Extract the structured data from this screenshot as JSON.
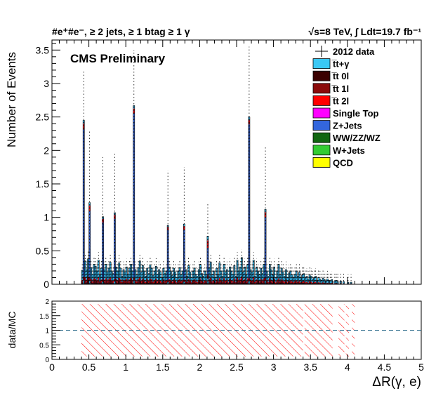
{
  "header": {
    "left_title": "#e⁺#e⁻, ≥ 2 jets, ≥ 1 btag ≥ 1 γ",
    "right_title": "√s=8 TeV, ∫ Ldt=19.7 fb⁻¹",
    "cms_label": "CMS Preliminary"
  },
  "chart_data": [
    {
      "type": "bar",
      "stacked": true,
      "xlabel": "ΔR(γ, e)",
      "ylabel": "Number of Events",
      "xlim": [
        0,
        5
      ],
      "ylim": [
        0,
        3.65
      ],
      "yticks": [
        0,
        0.5,
        1,
        1.5,
        2,
        2.5,
        3,
        3.5
      ],
      "ytick_labels": [
        "0",
        "0.5",
        "1",
        "1.5",
        "2",
        "2.5",
        "3",
        "3.5"
      ],
      "legend_position": "top-right",
      "legend": [
        {
          "name": "2012 data",
          "marker": "data-point"
        },
        {
          "name": "t̅t+γ",
          "color": "#3ac8f5"
        },
        {
          "name": "t̅t 0l",
          "color": "#3a0000"
        },
        {
          "name": "t̅t 1l",
          "color": "#8b0a0a"
        },
        {
          "name": "t̅t 2l",
          "color": "#ff0000"
        },
        {
          "name": "Single Top",
          "color": "#ff00ff"
        },
        {
          "name": "Z+Jets",
          "color": "#3366dd"
        },
        {
          "name": "WW/ZZ/WZ",
          "color": "#116611"
        },
        {
          "name": "W+Jets",
          "color": "#33cc33"
        },
        {
          "name": "QCD",
          "color": "#ffff00"
        }
      ],
      "bin_width": 0.02,
      "bins": [
        {
          "x": 0.43,
          "mc": 2.45,
          "zjets": 2.2,
          "err": 3.2
        },
        {
          "x": 0.51,
          "mc": 1.22,
          "zjets": 1.0,
          "err": 2.3
        },
        {
          "x": 0.69,
          "mc": 1.01,
          "zjets": 0.85,
          "err": 1.9
        },
        {
          "x": 0.85,
          "mc": 1.07,
          "zjets": 0.9,
          "err": 1.95
        },
        {
          "x": 1.11,
          "mc": 2.67,
          "zjets": 2.45,
          "err": 3.5
        },
        {
          "x": 1.57,
          "mc": 0.88,
          "zjets": 0.75,
          "err": 1.7
        },
        {
          "x": 1.79,
          "mc": 0.9,
          "zjets": 0.75,
          "err": 1.75
        },
        {
          "x": 2.11,
          "mc": 0.72,
          "zjets": 0.4,
          "err": 1.2
        },
        {
          "x": 2.67,
          "mc": 2.5,
          "zjets": 2.3,
          "err": 3.55
        },
        {
          "x": 2.89,
          "mc": 1.12,
          "zjets": 0.9,
          "err": 2.05
        }
      ],
      "small_bins": [
        [
          0.41,
          0.21
        ],
        [
          0.45,
          0.35
        ],
        [
          0.47,
          0.22
        ],
        [
          0.49,
          0.38
        ],
        [
          0.53,
          0.25
        ],
        [
          0.55,
          0.15
        ],
        [
          0.57,
          0.3
        ],
        [
          0.59,
          0.27
        ],
        [
          0.61,
          0.2
        ],
        [
          0.63,
          0.36
        ],
        [
          0.65,
          0.14
        ],
        [
          0.67,
          0.24
        ],
        [
          0.71,
          0.22
        ],
        [
          0.73,
          0.3
        ],
        [
          0.75,
          0.18
        ],
        [
          0.77,
          0.24
        ],
        [
          0.79,
          0.33
        ],
        [
          0.81,
          0.2
        ],
        [
          0.83,
          0.16
        ],
        [
          0.87,
          0.26
        ],
        [
          0.89,
          0.2
        ],
        [
          0.91,
          0.32
        ],
        [
          0.93,
          0.24
        ],
        [
          0.95,
          0.12
        ],
        [
          0.97,
          0.22
        ],
        [
          0.99,
          0.18
        ],
        [
          1.01,
          0.26
        ],
        [
          1.03,
          0.15
        ],
        [
          1.05,
          0.24
        ],
        [
          1.07,
          0.3
        ],
        [
          1.09,
          0.2
        ],
        [
          1.13,
          0.22
        ],
        [
          1.15,
          0.14
        ],
        [
          1.17,
          0.25
        ],
        [
          1.19,
          0.35
        ],
        [
          1.21,
          0.18
        ],
        [
          1.23,
          0.28
        ],
        [
          1.25,
          0.2
        ],
        [
          1.27,
          0.12
        ],
        [
          1.29,
          0.24
        ],
        [
          1.31,
          0.16
        ],
        [
          1.33,
          0.29
        ],
        [
          1.35,
          0.24
        ],
        [
          1.37,
          0.13
        ],
        [
          1.39,
          0.2
        ],
        [
          1.41,
          0.27
        ],
        [
          1.43,
          0.15
        ],
        [
          1.45,
          0.22
        ],
        [
          1.47,
          0.18
        ],
        [
          1.49,
          0.1
        ],
        [
          1.51,
          0.24
        ],
        [
          1.53,
          0.16
        ],
        [
          1.55,
          0.2
        ],
        [
          1.59,
          0.26
        ],
        [
          1.61,
          0.2
        ],
        [
          1.63,
          0.13
        ],
        [
          1.65,
          0.24
        ],
        [
          1.67,
          0.18
        ],
        [
          1.69,
          0.1
        ],
        [
          1.71,
          0.2
        ],
        [
          1.73,
          0.25
        ],
        [
          1.75,
          0.14
        ],
        [
          1.77,
          0.2
        ],
        [
          1.81,
          0.22
        ],
        [
          1.83,
          0.12
        ],
        [
          1.85,
          0.28
        ],
        [
          1.87,
          0.18
        ],
        [
          1.89,
          0.1
        ],
        [
          1.91,
          0.2
        ],
        [
          1.93,
          0.24
        ],
        [
          1.95,
          0.15
        ],
        [
          1.97,
          0.12
        ],
        [
          1.99,
          0.22
        ],
        [
          2.01,
          0.3
        ],
        [
          2.03,
          0.16
        ],
        [
          2.05,
          0.12
        ],
        [
          2.07,
          0.2
        ],
        [
          2.09,
          0.15
        ],
        [
          2.13,
          0.25
        ],
        [
          2.15,
          0.33
        ],
        [
          2.17,
          0.14
        ],
        [
          2.19,
          0.2
        ],
        [
          2.21,
          0.1
        ],
        [
          2.23,
          0.24
        ],
        [
          2.25,
          0.14
        ],
        [
          2.27,
          0.32
        ],
        [
          2.29,
          0.2
        ],
        [
          2.31,
          0.12
        ],
        [
          2.33,
          0.3
        ],
        [
          2.35,
          0.18
        ],
        [
          2.37,
          0.22
        ],
        [
          2.39,
          0.1
        ],
        [
          2.41,
          0.26
        ],
        [
          2.43,
          0.2
        ],
        [
          2.45,
          0.15
        ],
        [
          2.47,
          0.28
        ],
        [
          2.49,
          0.12
        ],
        [
          2.51,
          0.36
        ],
        [
          2.53,
          0.2
        ],
        [
          2.55,
          0.26
        ],
        [
          2.57,
          0.4
        ],
        [
          2.59,
          0.18
        ],
        [
          2.61,
          0.26
        ],
        [
          2.63,
          0.14
        ],
        [
          2.65,
          0.3
        ],
        [
          2.69,
          0.22
        ],
        [
          2.71,
          0.18
        ],
        [
          2.73,
          0.36
        ],
        [
          2.75,
          0.12
        ],
        [
          2.77,
          0.26
        ],
        [
          2.79,
          0.2
        ],
        [
          2.81,
          0.14
        ],
        [
          2.83,
          0.24
        ],
        [
          2.85,
          0.16
        ],
        [
          2.87,
          0.3
        ],
        [
          2.91,
          0.2
        ],
        [
          2.93,
          0.12
        ],
        [
          2.95,
          0.3
        ],
        [
          2.97,
          0.22
        ],
        [
          2.99,
          0.14
        ],
        [
          3.01,
          0.26
        ],
        [
          3.03,
          0.1
        ],
        [
          3.05,
          0.2
        ],
        [
          3.07,
          0.3
        ],
        [
          3.09,
          0.14
        ],
        [
          3.11,
          0.24
        ],
        [
          3.13,
          0.18
        ],
        [
          3.15,
          0.12
        ],
        [
          3.17,
          0.22
        ],
        [
          3.19,
          0.1
        ],
        [
          3.21,
          0.17
        ],
        [
          3.23,
          0.2
        ],
        [
          3.25,
          0.14
        ],
        [
          3.27,
          0.1
        ],
        [
          3.29,
          0.15
        ],
        [
          3.31,
          0.2
        ],
        [
          3.33,
          0.12
        ],
        [
          3.35,
          0.18
        ],
        [
          3.37,
          0.1
        ],
        [
          3.39,
          0.14
        ],
        [
          3.41,
          0.16
        ],
        [
          3.43,
          0.1
        ],
        [
          3.45,
          0.12
        ],
        [
          3.47,
          0.08
        ],
        [
          3.49,
          0.14
        ],
        [
          3.51,
          0.12
        ],
        [
          3.53,
          0.08
        ],
        [
          3.55,
          0.1
        ],
        [
          3.57,
          0.12
        ],
        [
          3.59,
          0.06
        ],
        [
          3.61,
          0.1
        ],
        [
          3.63,
          0.08
        ],
        [
          3.65,
          0.06
        ],
        [
          3.67,
          0.09
        ],
        [
          3.69,
          0.07
        ],
        [
          3.71,
          0.05
        ],
        [
          3.73,
          0.08
        ],
        [
          3.75,
          0.06
        ],
        [
          3.77,
          0.05
        ],
        [
          3.79,
          0.07
        ],
        [
          3.83,
          0.05
        ],
        [
          3.85,
          0.06
        ],
        [
          3.87,
          0.04
        ],
        [
          3.91,
          0.05
        ],
        [
          3.95,
          0.04
        ],
        [
          4.01,
          0.03
        ],
        [
          4.05,
          0.03
        ]
      ]
    },
    {
      "type": "ratio",
      "xlabel": "ΔR(γ, e)",
      "ylabel": "data/MC",
      "xlim": [
        0,
        5
      ],
      "ylim": [
        0,
        2
      ],
      "yticks": [
        0,
        0.5,
        1,
        1.5,
        2
      ],
      "ytick_labels": [
        "0",
        "0.5",
        "1",
        "1.5",
        "2"
      ],
      "xticks": [
        0,
        0.5,
        1,
        1.5,
        2,
        2.5,
        3,
        3.5,
        4,
        4.5,
        5
      ],
      "xtick_labels": [
        "0",
        "0.5",
        "1",
        "1.5",
        "2",
        "2.5",
        "3",
        "3.5",
        "4",
        "4.5",
        "5"
      ],
      "reference_line": 1,
      "band_ranges": [
        [
          0.4,
          3.4
        ],
        [
          3.42,
          3.8
        ],
        [
          3.88,
          3.96
        ],
        [
          3.98,
          4.02
        ],
        [
          4.06,
          4.1
        ]
      ],
      "band_color": "#ff0000"
    }
  ]
}
